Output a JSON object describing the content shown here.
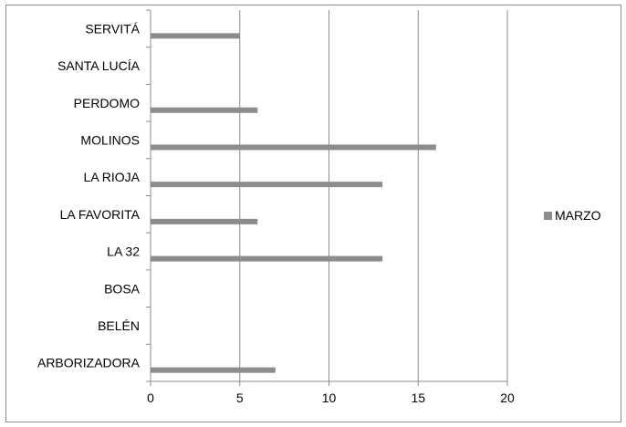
{
  "chart_data": {
    "type": "bar",
    "orientation": "horizontal",
    "categories": [
      "SERVITÁ",
      "SANTA LUCÍA",
      "PERDOMO",
      "MOLINOS",
      "LA RIOJA",
      "LA FAVORITA",
      "LA 32",
      "BOSA",
      "BELÉN",
      "ARBORIZADORA"
    ],
    "series": [
      {
        "name": "MARZO",
        "values": [
          5,
          0,
          6,
          16,
          13,
          6,
          13,
          0,
          0,
          7
        ],
        "color": "#8c8c8c"
      }
    ],
    "xlim": [
      0,
      20
    ],
    "xticks": [
      0,
      5,
      10,
      15,
      20
    ],
    "grid": true,
    "legend_position": "right",
    "title": "",
    "xlabel": "",
    "ylabel": ""
  }
}
